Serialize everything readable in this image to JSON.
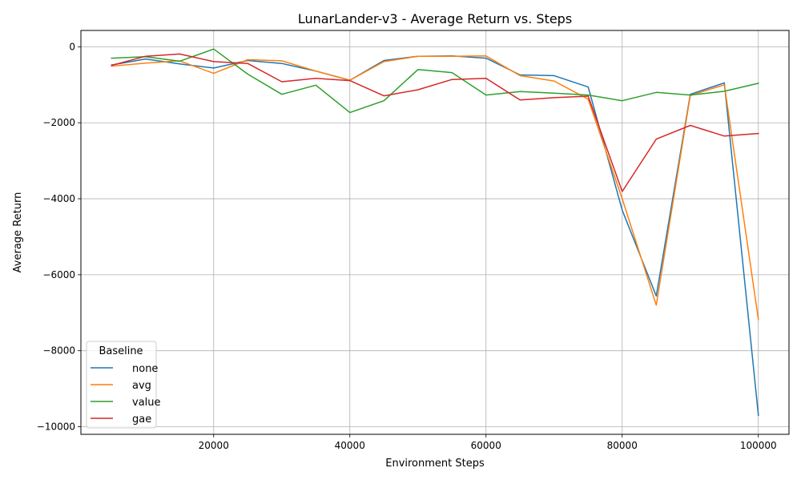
{
  "chart_data": {
    "type": "line",
    "title": "LunarLander-v3 - Average Return vs. Steps",
    "xlabel": "Environment Steps",
    "ylabel": "Average Return",
    "xlim": [
      500,
      104500
    ],
    "ylim": [
      -10200,
      430
    ],
    "x_ticks": [
      20000,
      40000,
      60000,
      80000,
      100000
    ],
    "x_tick_labels": [
      "20000",
      "40000",
      "60000",
      "80000",
      "100000"
    ],
    "y_ticks": [
      0,
      -2000,
      -4000,
      -6000,
      -8000,
      -10000
    ],
    "y_tick_labels": [
      "0",
      "−2000",
      "−4000",
      "−6000",
      "−8000",
      "−10000"
    ],
    "grid": true,
    "legend": {
      "title": "Baseline",
      "position": "lower-left"
    },
    "x": [
      5000,
      10000,
      15000,
      20000,
      25000,
      30000,
      35000,
      40000,
      45000,
      50000,
      55000,
      60000,
      65000,
      70000,
      75000,
      80000,
      85000,
      90000,
      95000,
      100000
    ],
    "series": [
      {
        "name": "none",
        "color": "#1f77b4",
        "values": [
          -480,
          -320,
          -450,
          -560,
          -360,
          -440,
          -640,
          -880,
          -360,
          -250,
          -240,
          -300,
          -740,
          -760,
          -1060,
          -4300,
          -6560,
          -1250,
          -950,
          -9700
        ]
      },
      {
        "name": "avg",
        "color": "#ff7f0e",
        "values": [
          -510,
          -430,
          -370,
          -700,
          -340,
          -370,
          -640,
          -880,
          -390,
          -250,
          -250,
          -240,
          -760,
          -900,
          -1380,
          -4000,
          -6800,
          -1280,
          -1000,
          -7180
        ]
      },
      {
        "name": "value",
        "color": "#2ca02c",
        "values": [
          -300,
          -260,
          -380,
          -60,
          -720,
          -1250,
          -1010,
          -1730,
          -1420,
          -600,
          -680,
          -1270,
          -1180,
          -1220,
          -1270,
          -1420,
          -1200,
          -1270,
          -1170,
          -960
        ]
      },
      {
        "name": "gae",
        "color": "#d62728",
        "values": [
          -490,
          -250,
          -190,
          -390,
          -440,
          -920,
          -830,
          -890,
          -1290,
          -1130,
          -860,
          -830,
          -1400,
          -1340,
          -1300,
          -3810,
          -2430,
          -2070,
          -2350,
          -2280
        ]
      }
    ]
  }
}
